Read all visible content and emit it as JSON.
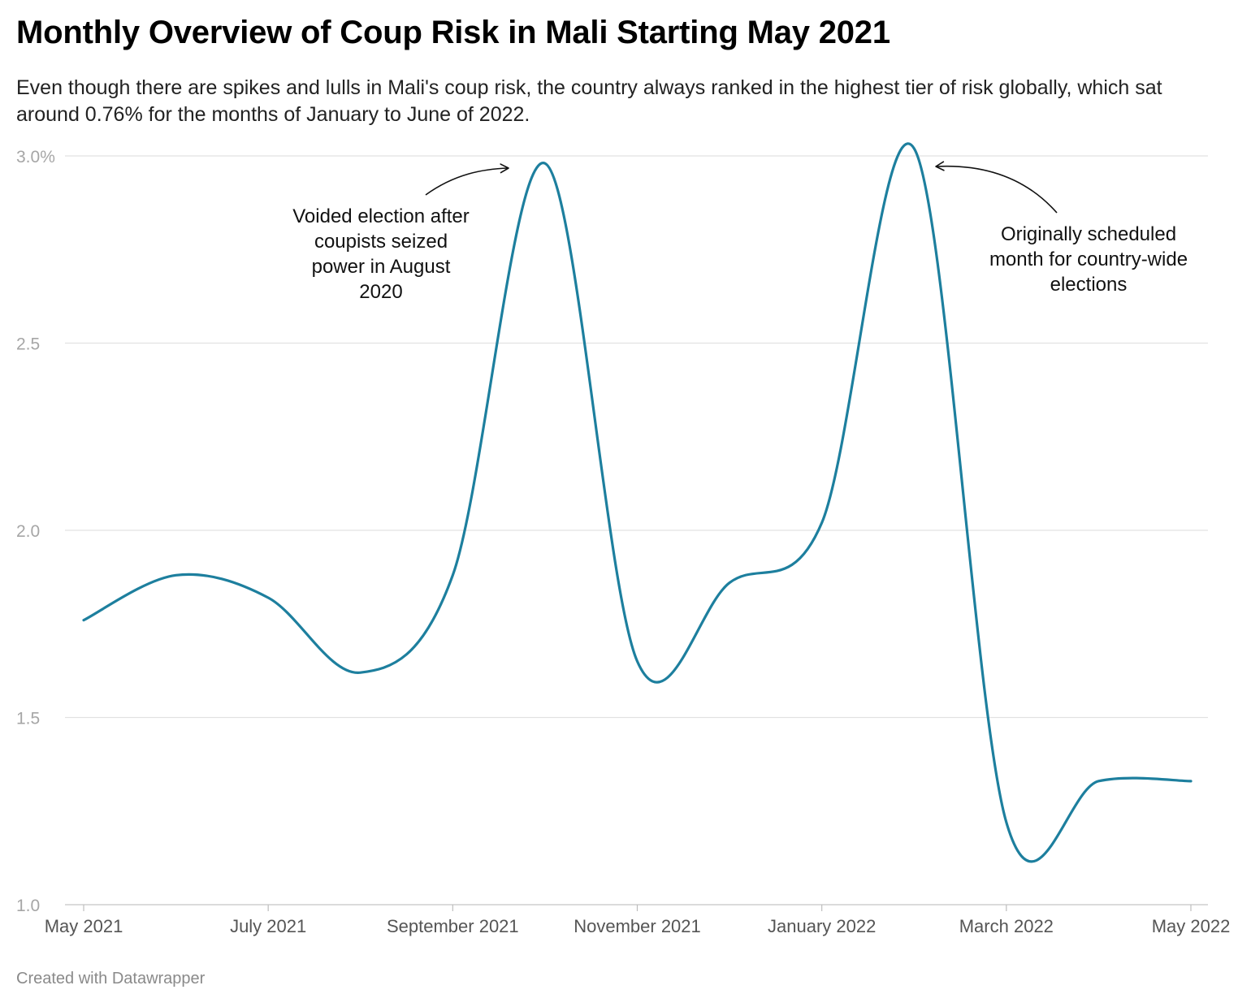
{
  "title": "Monthly Overview of Coup Risk in Mali Starting May 2021",
  "subtitle": "Even though there are spikes and lulls in Mali's coup risk, the country always ranked in the highest tier of risk globally, which sat around 0.76% for the months of January to June of 2022.",
  "footer": "Created with Datawrapper",
  "chart_data": {
    "type": "line",
    "title": "Monthly Overview of Coup Risk in Mali Starting May 2021",
    "xlabel": "",
    "ylabel": "",
    "x": [
      "2021-05",
      "2021-06",
      "2021-07",
      "2021-08",
      "2021-09",
      "2021-10",
      "2021-11",
      "2021-12",
      "2022-01",
      "2022-02",
      "2022-03",
      "2022-04",
      "2022-05"
    ],
    "values": [
      1.76,
      1.88,
      1.82,
      1.62,
      1.88,
      2.98,
      1.65,
      1.86,
      2.02,
      3.02,
      1.22,
      1.33,
      1.33
    ],
    "ylim": [
      1.0,
      3.0
    ],
    "yticks": [
      {
        "value": 1.0,
        "label": "1.0"
      },
      {
        "value": 1.5,
        "label": "1.5"
      },
      {
        "value": 2.0,
        "label": "2.0"
      },
      {
        "value": 2.5,
        "label": "2.5"
      },
      {
        "value": 3.0,
        "label": "3.0%"
      }
    ],
    "xticks": [
      {
        "x": "2021-05",
        "label": "May 2021"
      },
      {
        "x": "2021-07",
        "label": "July 2021"
      },
      {
        "x": "2021-09",
        "label": "September 2021"
      },
      {
        "x": "2021-11",
        "label": "November 2021"
      },
      {
        "x": "2022-01",
        "label": "January 2022"
      },
      {
        "x": "2022-03",
        "label": "March 2022"
      },
      {
        "x": "2022-05",
        "label": "May 2022"
      }
    ],
    "grid": true,
    "line_color": "#1d7f9e",
    "annotations": [
      {
        "target": "2021-10",
        "lines": [
          "Voided election after",
          "coupists seized",
          "power in August",
          "2020"
        ]
      },
      {
        "target": "2022-02",
        "lines": [
          "Originally scheduled",
          "month for country-wide",
          "elections"
        ]
      }
    ]
  }
}
